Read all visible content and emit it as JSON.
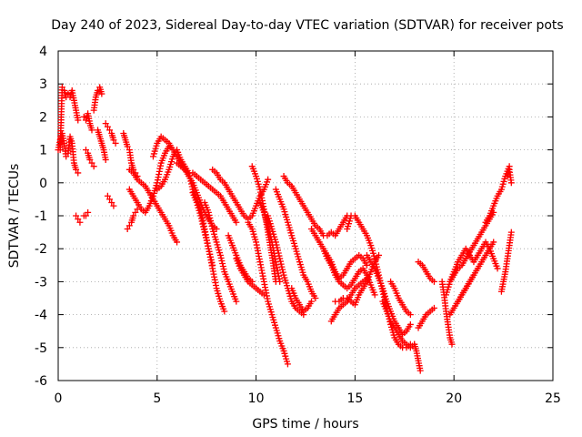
{
  "chart_data": {
    "type": "scatter",
    "title": "Day 240 of 2023, Sidereal Day-to-day VTEC variation (SDTVAR) for receiver pots",
    "xlabel": "GPS time / hours",
    "ylabel": "SDTVAR / TECUs",
    "xlim": [
      0,
      25
    ],
    "ylim": [
      -6,
      4
    ],
    "xticks": [
      "0",
      "5",
      "10",
      "15",
      "20",
      "25"
    ],
    "yticks": [
      "-6",
      "-5",
      "-4",
      "-3",
      "-2",
      "-1",
      "0",
      "1",
      "2",
      "3",
      "4"
    ],
    "grid": true,
    "marker": "+",
    "color": "#ff0000",
    "series": [
      {
        "name": "s1",
        "x": [
          0.1,
          0.2,
          0.3,
          0.4,
          0.5,
          0.6,
          0.7,
          0.8,
          0.9,
          1.0
        ],
        "y": [
          1.0,
          2.9,
          2.8,
          2.6,
          2.7,
          2.6,
          2.8,
          2.5,
          2.2,
          1.9
        ]
      },
      {
        "name": "s2",
        "x": [
          0.0,
          0.1,
          0.2,
          0.3,
          0.4,
          0.5,
          0.6,
          0.7,
          0.8,
          0.9,
          1.0
        ],
        "y": [
          1.0,
          1.3,
          1.5,
          1.2,
          0.8,
          0.9,
          1.4,
          1.2,
          0.6,
          0.4,
          0.3
        ]
      },
      {
        "name": "s3",
        "x": [
          0.9,
          1.0,
          1.1
        ],
        "y": [
          -1.0,
          -1.1,
          -1.2
        ]
      },
      {
        "name": "s4",
        "x": [
          1.3,
          1.4,
          1.5
        ],
        "y": [
          -1.0,
          -1.0,
          -0.9
        ]
      },
      {
        "name": "s5",
        "x": [
          1.3,
          1.4,
          1.5,
          1.6,
          1.7
        ],
        "y": [
          2.0,
          1.9,
          2.1,
          1.8,
          1.6
        ]
      },
      {
        "name": "s6",
        "x": [
          1.4,
          1.5,
          1.6,
          1.7,
          1.8
        ],
        "y": [
          1.0,
          0.9,
          0.7,
          0.6,
          0.5
        ]
      },
      {
        "name": "s7",
        "x": [
          1.8,
          1.9,
          2.0,
          2.1,
          2.2
        ],
        "y": [
          2.2,
          2.6,
          2.8,
          2.9,
          2.7
        ]
      },
      {
        "name": "s8",
        "x": [
          2.0,
          2.1,
          2.2,
          2.3,
          2.4
        ],
        "y": [
          1.6,
          1.4,
          1.2,
          1.0,
          0.7
        ]
      },
      {
        "name": "s9",
        "x": [
          2.4,
          2.5,
          2.6,
          2.7,
          2.8,
          2.9
        ],
        "y": [
          1.8,
          1.7,
          1.6,
          1.5,
          1.3,
          1.2
        ]
      },
      {
        "name": "s10",
        "x": [
          2.5,
          2.6,
          2.7,
          2.8
        ],
        "y": [
          -0.4,
          -0.5,
          -0.6,
          -0.7
        ]
      },
      {
        "name": "s11",
        "x": [
          3.3,
          3.4,
          3.5,
          3.6,
          3.7,
          3.8,
          3.9,
          4.0
        ],
        "y": [
          1.5,
          1.3,
          1.1,
          1.0,
          0.6,
          0.4,
          0.3,
          0.2
        ]
      },
      {
        "name": "s12",
        "x": [
          3.5,
          3.6,
          3.7,
          3.8,
          3.9,
          4.0
        ],
        "y": [
          -1.4,
          -1.3,
          -1.2,
          -1.0,
          -0.9,
          -0.8
        ]
      },
      {
        "name": "s13",
        "x": [
          3.6,
          3.8,
          4.0,
          4.2,
          4.4,
          4.6,
          4.8,
          5.0,
          5.2,
          5.4,
          5.6
        ],
        "y": [
          -0.2,
          -0.4,
          -0.6,
          -0.8,
          -0.9,
          -0.7,
          -0.4,
          0.0,
          0.6,
          0.9,
          1.1
        ]
      },
      {
        "name": "s14",
        "x": [
          3.6,
          3.8,
          4.0,
          4.2,
          4.4,
          4.6,
          4.8,
          5.0,
          5.2,
          5.4,
          5.6,
          5.8,
          6.0
        ],
        "y": [
          0.4,
          0.3,
          0.1,
          0.0,
          -0.1,
          -0.3,
          -0.5,
          -0.7,
          -0.9,
          -1.1,
          -1.3,
          -1.6,
          -1.8
        ]
      },
      {
        "name": "s15",
        "x": [
          4.8,
          5.0,
          5.2,
          5.4,
          5.6,
          5.8,
          6.0,
          6.2,
          6.4,
          6.6,
          6.8,
          7.0,
          7.2,
          7.4,
          7.6,
          7.8,
          8.0
        ],
        "y": [
          0.8,
          1.2,
          1.4,
          1.3,
          1.2,
          1.0,
          0.8,
          0.6,
          0.4,
          0.2,
          0.0,
          -0.3,
          -0.6,
          -0.9,
          -1.1,
          -1.3,
          -1.4
        ]
      },
      {
        "name": "s16",
        "x": [
          5.0,
          5.2,
          5.4,
          5.6,
          5.8,
          6.0,
          6.2,
          6.4,
          6.6,
          6.8,
          7.0,
          7.2,
          7.4,
          7.6,
          7.8
        ],
        "y": [
          -0.2,
          -0.1,
          0.1,
          0.4,
          0.8,
          1.0,
          0.7,
          0.5,
          0.3,
          -0.2,
          -0.5,
          -0.8,
          -1.4,
          -2.0,
          -2.5
        ]
      },
      {
        "name": "s17",
        "x": [
          6.0,
          6.2,
          6.4,
          6.6,
          6.8,
          7.0,
          7.2,
          7.4,
          7.6,
          7.8,
          8.0,
          8.2,
          8.4,
          8.6,
          8.8,
          9.0
        ],
        "y": [
          0.6,
          0.5,
          0.4,
          0.3,
          0.3,
          0.2,
          0.1,
          0.0,
          -0.1,
          -0.2,
          -0.3,
          -0.4,
          -0.6,
          -0.8,
          -1.0,
          -1.2
        ]
      },
      {
        "name": "s18",
        "x": [
          6.8,
          7.0,
          7.2,
          7.4,
          7.6,
          7.8,
          8.0,
          8.2,
          8.4
        ],
        "y": [
          -0.3,
          -0.6,
          -1.0,
          -1.5,
          -2.0,
          -2.6,
          -3.2,
          -3.6,
          -3.9
        ]
      },
      {
        "name": "s19",
        "x": [
          7.4,
          7.6,
          7.8,
          8.0,
          8.2,
          8.4,
          8.6,
          8.8,
          9.0
        ],
        "y": [
          -0.6,
          -0.9,
          -1.4,
          -1.8,
          -2.2,
          -2.7,
          -3.0,
          -3.3,
          -3.6
        ]
      },
      {
        "name": "s20",
        "x": [
          7.8,
          8.0,
          8.2,
          8.4,
          8.6,
          8.8,
          9.0,
          9.2,
          9.4,
          9.6,
          9.8,
          10.0,
          10.2,
          10.4,
          10.6
        ],
        "y": [
          0.4,
          0.3,
          0.1,
          0.0,
          -0.2,
          -0.4,
          -0.6,
          -0.8,
          -1.0,
          -1.1,
          -1.0,
          -0.7,
          -0.4,
          -0.2,
          0.1
        ]
      },
      {
        "name": "s21",
        "x": [
          8.6,
          8.8,
          9.0,
          9.2,
          9.4,
          9.6,
          9.8
        ],
        "y": [
          -1.6,
          -1.9,
          -2.2,
          -2.5,
          -2.7,
          -2.9,
          -3.0
        ]
      },
      {
        "name": "s22",
        "x": [
          9.0,
          9.2,
          9.4,
          9.6,
          9.8,
          10.0,
          10.2,
          10.4
        ],
        "y": [
          -2.3,
          -2.6,
          -2.8,
          -3.0,
          -3.1,
          -3.2,
          -3.3,
          -3.4
        ]
      },
      {
        "name": "s23",
        "x": [
          9.6,
          9.8,
          10.0,
          10.2,
          10.4,
          10.6,
          10.8,
          11.0,
          11.2,
          11.4,
          11.6
        ],
        "y": [
          -1.2,
          -1.4,
          -1.8,
          -2.4,
          -3.0,
          -3.6,
          -4.0,
          -4.4,
          -4.8,
          -5.1,
          -5.5
        ]
      },
      {
        "name": "s24",
        "x": [
          9.8,
          10.0,
          10.2,
          10.4,
          10.6,
          10.8,
          11.0
        ],
        "y": [
          0.5,
          0.2,
          -0.2,
          -0.8,
          -1.5,
          -2.2,
          -3.0
        ]
      },
      {
        "name": "s25",
        "x": [
          10.2,
          10.4,
          10.6,
          10.8,
          11.0,
          11.2
        ],
        "y": [
          -0.6,
          -0.9,
          -1.3,
          -1.8,
          -2.4,
          -3.0
        ]
      },
      {
        "name": "s26",
        "x": [
          10.6,
          10.8,
          11.0,
          11.2,
          11.4,
          11.6,
          11.8,
          12.0,
          12.2,
          12.4
        ],
        "y": [
          -1.0,
          -1.4,
          -1.8,
          -2.3,
          -2.8,
          -3.2,
          -3.6,
          -3.8,
          -3.9,
          -4.0
        ]
      },
      {
        "name": "s27",
        "x": [
          11.0,
          11.2,
          11.4,
          11.6,
          11.8,
          12.0,
          12.2,
          12.4,
          12.6,
          12.8,
          13.0
        ],
        "y": [
          -0.2,
          -0.5,
          -0.8,
          -1.2,
          -1.6,
          -2.0,
          -2.4,
          -2.8,
          -3.0,
          -3.3,
          -3.5
        ]
      },
      {
        "name": "s28",
        "x": [
          11.8,
          12.0,
          12.2,
          12.4,
          12.6,
          12.8
        ],
        "y": [
          -3.2,
          -3.5,
          -3.7,
          -3.9,
          -3.8,
          -3.6
        ]
      },
      {
        "name": "s29",
        "x": [
          11.4,
          11.6,
          11.8,
          12.0,
          12.2,
          12.4,
          12.6,
          12.8,
          13.0,
          13.2,
          13.4,
          13.6,
          13.8,
          14.0,
          14.2,
          14.4,
          14.6
        ],
        "y": [
          0.2,
          0.0,
          -0.1,
          -0.3,
          -0.5,
          -0.7,
          -0.9,
          -1.1,
          -1.3,
          -1.4,
          -1.6,
          -1.6,
          -1.5,
          -1.6,
          -1.4,
          -1.2,
          -1.0
        ]
      },
      {
        "name": "s30",
        "x": [
          12.8,
          13.0,
          13.2,
          13.4,
          13.6,
          13.8,
          14.0,
          14.2,
          14.4,
          14.6,
          14.8,
          15.0,
          15.2,
          15.4,
          15.6,
          15.8,
          16.0
        ],
        "y": [
          -1.4,
          -1.6,
          -1.8,
          -2.0,
          -2.3,
          -2.5,
          -2.8,
          -3.0,
          -3.1,
          -3.2,
          -3.1,
          -2.9,
          -2.7,
          -2.6,
          -2.8,
          -3.1,
          -3.4
        ]
      },
      {
        "name": "s31",
        "x": [
          13.4,
          13.6,
          13.8,
          14.0,
          14.2,
          14.4,
          14.6,
          14.8,
          15.0,
          15.2,
          15.4,
          15.6
        ],
        "y": [
          -2.0,
          -2.2,
          -2.4,
          -2.7,
          -2.9,
          -2.8,
          -2.6,
          -2.4,
          -2.3,
          -2.2,
          -2.3,
          -2.5
        ]
      },
      {
        "name": "s32",
        "x": [
          14.0,
          14.2,
          14.4,
          14.6,
          14.8,
          15.0,
          15.2,
          15.4,
          15.6,
          15.8,
          16.0,
          16.2
        ],
        "y": [
          -3.6,
          -3.6,
          -3.5,
          -3.5,
          -3.6,
          -3.7,
          -3.4,
          -3.2,
          -3.0,
          -2.7,
          -2.4,
          -2.2
        ]
      },
      {
        "name": "s33",
        "x": [
          13.8,
          14.0,
          14.2,
          14.4,
          14.6,
          14.8,
          15.0,
          15.2,
          15.4,
          15.6
        ],
        "y": [
          -4.2,
          -4.0,
          -3.8,
          -3.7,
          -3.6,
          -3.4,
          -3.2,
          -3.1,
          -3.0,
          -2.9
        ]
      },
      {
        "name": "s34",
        "x": [
          14.6,
          14.8,
          15.0,
          15.2,
          15.4,
          15.6,
          15.8,
          16.0,
          16.2,
          16.4,
          16.6,
          16.8,
          17.0,
          17.2,
          17.4,
          17.6,
          17.8
        ],
        "y": [
          -1.4,
          -1.0,
          -1.0,
          -1.2,
          -1.4,
          -1.6,
          -1.9,
          -2.3,
          -2.8,
          -3.3,
          -3.8,
          -4.3,
          -4.7,
          -4.9,
          -5.0,
          -5.0,
          -4.9
        ]
      },
      {
        "name": "s35",
        "x": [
          15.6,
          15.8,
          16.0,
          16.2,
          16.4,
          16.6,
          16.8,
          17.0,
          17.2,
          17.4,
          17.6,
          17.8
        ],
        "y": [
          -2.2,
          -2.4,
          -2.6,
          -2.9,
          -3.2,
          -3.6,
          -3.9,
          -4.2,
          -4.4,
          -4.6,
          -4.5,
          -4.3
        ]
      },
      {
        "name": "s36",
        "x": [
          16.4,
          16.6,
          16.8,
          17.0,
          17.2,
          17.4,
          17.6,
          17.8,
          18.0
        ],
        "y": [
          -3.6,
          -3.9,
          -4.2,
          -4.4,
          -4.6,
          -4.8,
          -4.9,
          -5.0,
          -4.9
        ]
      },
      {
        "name": "s37",
        "x": [
          16.8,
          17.0,
          17.2,
          17.4,
          17.6,
          17.8
        ],
        "y": [
          -3.0,
          -3.2,
          -3.5,
          -3.7,
          -3.9,
          -4.0
        ]
      },
      {
        "name": "s38",
        "x": [
          18.0,
          18.1,
          18.2,
          18.3
        ],
        "y": [
          -4.9,
          -5.1,
          -5.4,
          -5.7
        ]
      },
      {
        "name": "s39",
        "x": [
          18.2,
          18.4,
          18.6,
          18.8,
          19.0
        ],
        "y": [
          -4.4,
          -4.2,
          -4.0,
          -3.9,
          -3.8
        ]
      },
      {
        "name": "s40",
        "x": [
          18.2,
          18.4,
          18.6,
          18.8,
          19.0
        ],
        "y": [
          -2.4,
          -2.5,
          -2.7,
          -2.9,
          -3.0
        ]
      },
      {
        "name": "s41",
        "x": [
          19.4,
          19.5,
          19.6,
          19.7,
          19.8,
          19.9
        ],
        "y": [
          -3.0,
          -3.4,
          -3.9,
          -4.3,
          -4.7,
          -4.9
        ]
      },
      {
        "name": "s42",
        "x": [
          19.6,
          19.8,
          20.0,
          20.2,
          20.4,
          20.6,
          20.8,
          21.0,
          21.2,
          21.4,
          21.6,
          21.8,
          22.0
        ],
        "y": [
          -3.4,
          -3.0,
          -2.8,
          -2.6,
          -2.5,
          -2.3,
          -2.1,
          -1.9,
          -1.7,
          -1.5,
          -1.3,
          -1.1,
          -0.9
        ]
      },
      {
        "name": "s43",
        "x": [
          19.8,
          20.0,
          20.2,
          20.4,
          20.6,
          20.8,
          21.0,
          21.2,
          21.4,
          21.6,
          21.8,
          22.0
        ],
        "y": [
          -4.0,
          -3.8,
          -3.6,
          -3.4,
          -3.2,
          -3.0,
          -2.8,
          -2.6,
          -2.4,
          -2.2,
          -2.0,
          -1.8
        ]
      },
      {
        "name": "s44",
        "x": [
          19.8,
          20.0,
          20.2,
          20.4,
          20.6,
          20.8,
          21.0,
          21.2,
          21.4,
          21.6,
          21.8,
          22.0,
          22.2
        ],
        "y": [
          -3.0,
          -2.7,
          -2.4,
          -2.2,
          -2.0,
          -2.2,
          -2.4,
          -2.2,
          -2.0,
          -1.8,
          -2.0,
          -2.3,
          -2.6
        ]
      },
      {
        "name": "s45",
        "x": [
          20.2,
          20.4,
          20.6,
          20.8,
          21.0
        ],
        "y": [
          -3.6,
          -3.4,
          -3.2,
          -3.0,
          -2.8
        ]
      },
      {
        "name": "s46",
        "x": [
          21.6,
          21.8,
          22.0,
          22.2,
          22.4,
          22.6,
          22.8
        ],
        "y": [
          -1.2,
          -1.0,
          -0.7,
          -0.4,
          -0.2,
          0.2,
          0.5
        ]
      },
      {
        "name": "s47",
        "x": [
          22.4,
          22.5,
          22.6,
          22.7,
          22.8,
          22.9
        ],
        "y": [
          -3.3,
          -3.0,
          -2.7,
          -2.3,
          -1.9,
          -1.5
        ]
      },
      {
        "name": "s48",
        "x": [
          22.7,
          22.8,
          22.9
        ],
        "y": [
          0.2,
          0.4,
          0.0
        ]
      }
    ]
  }
}
